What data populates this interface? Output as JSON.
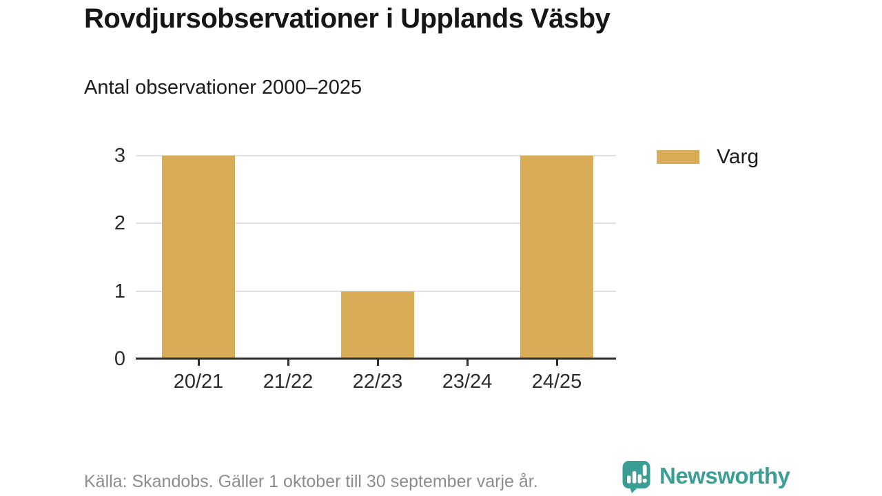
{
  "header": {
    "title": "Rovdjursobservationer i Upplands Väsby",
    "subtitle": "Antal observationer 2000–2025"
  },
  "legend": {
    "items": [
      {
        "label": "Varg",
        "color": "#D9AC57"
      }
    ]
  },
  "footer": {
    "source": "Källa: Skandobs. Gäller 1 oktober till 30 september varje år."
  },
  "branding": {
    "name": "Newsworthy",
    "color": "#3B9E95",
    "icon": "newsworthy-speech-bubble-bar-chart-icon"
  },
  "chart_data": {
    "type": "bar",
    "categories": [
      "20/21",
      "21/22",
      "22/23",
      "23/24",
      "24/25"
    ],
    "series": [
      {
        "name": "Varg",
        "values": [
          3,
          0,
          1,
          0,
          3
        ],
        "color": "#D9AC57"
      }
    ],
    "title": "Rovdjursobservationer i Upplands Väsby",
    "subtitle": "Antal observationer 2000–2025",
    "xlabel": "",
    "ylabel": "",
    "ylim": [
      0,
      3
    ],
    "yticks": [
      0,
      1,
      2,
      3
    ],
    "grid": true,
    "gridline_color": "#e1e1e1",
    "axis_color": "#2e2e2e",
    "legend_position": "top-right"
  }
}
